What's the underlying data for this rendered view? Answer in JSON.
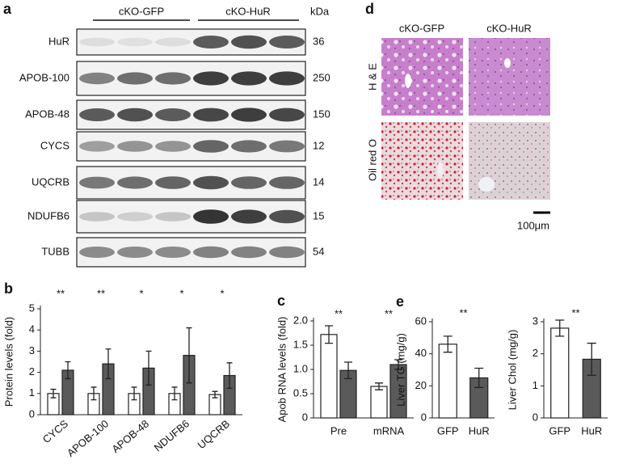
{
  "blot": {
    "label": "a",
    "groups": [
      "cKO-GFP",
      "cKO-HuR"
    ],
    "unit": "kDa",
    "rows": [
      {
        "protein": "HuR",
        "kda": 36
      },
      {
        "protein": "APOB-100",
        "kda": 250
      },
      {
        "protein": "APOB-48",
        "kda": 150
      },
      {
        "protein": "CYCS",
        "kda": 12
      },
      {
        "protein": "UQCRB",
        "kda": 14
      },
      {
        "protein": "NDUFB6",
        "kda": 15
      },
      {
        "protein": "TUBB",
        "kda": 54
      }
    ]
  },
  "histology": {
    "label": "d",
    "columns": [
      "cKO-GFP",
      "cKO-HuR"
    ],
    "rows": [
      "H & E",
      "Oil red O"
    ],
    "scale_bar": "100μm"
  },
  "chart_data": [
    {
      "type": "bar",
      "label": "b",
      "ylabel": "Protein levels (fold)",
      "categories": [
        "CYCS",
        "APOB-100",
        "APOB-48",
        "NDUFB6",
        "UQCRB"
      ],
      "series": [
        {
          "color": "#ffffff",
          "values": [
            1.0,
            1.0,
            1.0,
            1.0,
            0.95
          ],
          "errors": [
            0.2,
            0.3,
            0.3,
            0.3,
            0.15
          ]
        },
        {
          "color": "#5a5a5a",
          "values": [
            2.1,
            2.4,
            2.2,
            2.8,
            1.85
          ],
          "errors": [
            0.4,
            0.7,
            0.8,
            1.3,
            0.6
          ]
        }
      ],
      "significance": [
        "**",
        "**",
        "*",
        "*",
        "*"
      ],
      "ylim": [
        0,
        5
      ],
      "yticks": [
        0,
        1,
        2,
        3,
        4,
        5
      ]
    },
    {
      "type": "bar",
      "label": "c",
      "ylabel": "Apob RNA levels (fold)",
      "categories": [
        "Pre",
        "mRNA"
      ],
      "series": [
        {
          "color": "#ffffff",
          "values": [
            1.72,
            0.65
          ],
          "errors": [
            0.18,
            0.07
          ]
        },
        {
          "color": "#5a5a5a",
          "values": [
            0.98,
            1.1
          ],
          "errors": [
            0.17,
            0.1
          ]
        }
      ],
      "significance": [
        "**",
        "**"
      ],
      "ylim": [
        0,
        2
      ],
      "yticks": [
        0,
        0.5,
        {
          "value": 1,
          "label": "1.0"
        },
        1.5,
        {
          "value": 2,
          "label": "2.0"
        }
      ]
    },
    {
      "type": "bar",
      "label": "e",
      "ylabel": "Liver TG (mg/g)",
      "categories": [
        "GFP",
        "HuR"
      ],
      "values": [
        46,
        25
      ],
      "errors": [
        5,
        6
      ],
      "colors": [
        "#ffffff",
        "#5a5a5a"
      ],
      "significance": [
        "**"
      ],
      "ylim": [
        0,
        60
      ],
      "yticks": [
        0,
        20,
        40,
        60
      ]
    },
    {
      "type": "bar",
      "ylabel": "Liver Chol (mg/g)",
      "categories": [
        "GFP",
        "HuR"
      ],
      "values": [
        2.8,
        1.83
      ],
      "errors": [
        0.25,
        0.5
      ],
      "colors": [
        "#ffffff",
        "#5a5a5a"
      ],
      "significance": [
        "**"
      ],
      "ylim": [
        0,
        3
      ],
      "yticks": [
        0,
        1,
        2,
        3
      ]
    }
  ]
}
